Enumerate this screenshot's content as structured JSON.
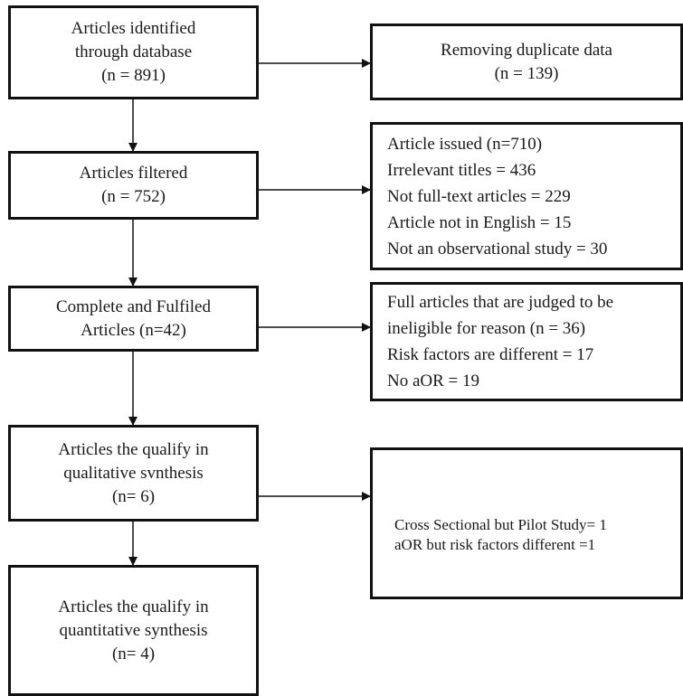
{
  "main_boxes": [
    {
      "lines": [
        "Articles identified",
        "through database",
        "(n = 891)"
      ]
    },
    {
      "lines": [
        "Articles filtered",
        "(n = 752)"
      ]
    },
    {
      "lines": [
        "Complete and Fulfiled",
        "Articles (n=42)"
      ]
    },
    {
      "lines": [
        "Articles the qualify in",
        "qualitative svnthesis",
        "(n= 6)"
      ]
    },
    {
      "lines": [
        "Articles the qualify in",
        "quantitative synthesis",
        "(n= 4)"
      ]
    }
  ],
  "side_boxes": [
    {
      "lines": [
        "Removing duplicate data",
        "(n = 139)"
      ]
    },
    {
      "lines": [
        "Article issued (n=710)",
        "Irrelevant titles = 436",
        "Not full-text articles = 229",
        "Article not in English = 15",
        "Not an observational study = 30"
      ]
    },
    {
      "lines": [
        "Full articles that are judged to be",
        "ineligible for reason  (n = 36)",
        "Risk factors are different = 17",
        "No aOR = 19"
      ]
    },
    {
      "lines": [
        "Cross Sectional but Pilot Study= 1",
        "aOR but risk factors different =1"
      ]
    }
  ]
}
